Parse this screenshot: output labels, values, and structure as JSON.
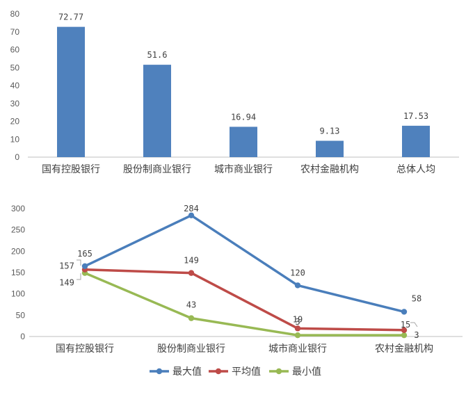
{
  "chart_data": [
    {
      "type": "bar",
      "categories": [
        "国有控股银行",
        "股份制商业银行",
        "城市商业银行",
        "农村金融机构",
        "总体人均"
      ],
      "values": [
        72.77,
        51.6,
        16.94,
        9.13,
        17.53
      ],
      "value_labels": [
        "72.77",
        "51.6",
        "16.94",
        "9.13",
        "17.53"
      ],
      "ylim": [
        0,
        80
      ],
      "yticks": [
        0,
        10,
        20,
        30,
        40,
        50,
        60,
        70,
        80
      ],
      "grid": false,
      "colors": {
        "bar": "#4F81BD"
      }
    },
    {
      "type": "line",
      "categories": [
        "国有控股银行",
        "股份制商业银行",
        "城市商业银行",
        "农村金融机构"
      ],
      "ylim": [
        0,
        300
      ],
      "yticks": [
        0,
        50,
        100,
        150,
        200,
        250,
        300
      ],
      "grid": false,
      "legend_position": "bottom",
      "series": [
        {
          "name": "最大值",
          "values": [
            165,
            284,
            120,
            58
          ],
          "color": "#4A7EBB"
        },
        {
          "name": "平均值",
          "values": [
            157,
            149,
            19,
            15
          ],
          "color": "#BE4B48"
        },
        {
          "name": "最小值",
          "values": [
            149,
            43,
            3,
            3
          ],
          "color": "#98B954"
        }
      ]
    }
  ]
}
